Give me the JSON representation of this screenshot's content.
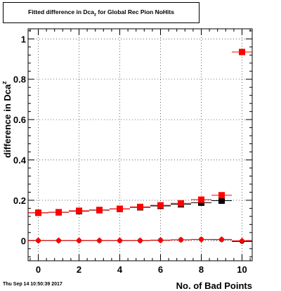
{
  "chart_data": {
    "type": "scatter",
    "title": {
      "main": "Fitted difference in Dca",
      "subscript": "z",
      "suffix": " for Global Rec Pion NoHits"
    },
    "xlabel": "No. of Bad Points",
    "ylabel": {
      "main": "difference in Dca",
      "subscript": "z"
    },
    "xlim": [
      -0.5,
      10.5
    ],
    "ylim": [
      -0.1,
      1.05
    ],
    "xticks": [
      0,
      2,
      4,
      6,
      8,
      10
    ],
    "yticks": [
      0,
      0.2,
      0.4,
      0.6,
      0.8,
      1
    ],
    "ytick_labels": [
      "0",
      "0.2",
      "0.4",
      "0.6",
      "0.8",
      "1"
    ],
    "xtick_labels": [
      "0",
      "2",
      "4",
      "6",
      "8",
      "10"
    ],
    "grid": "vertical and horizontal dotted",
    "series": [
      {
        "marker": "square",
        "color": "#000000",
        "x": [
          0,
          1,
          2,
          3,
          4,
          5,
          6,
          7,
          8,
          9,
          10
        ],
        "y": [
          0.138,
          0.14,
          0.146,
          0.151,
          0.157,
          0.165,
          0.172,
          0.18,
          0.188,
          0.198,
          0.935
        ],
        "xerr": 0.5
      },
      {
        "marker": "square",
        "color": "#ff0000",
        "x": [
          0,
          1,
          2,
          3,
          4,
          5,
          6,
          7,
          8,
          9,
          10
        ],
        "y": [
          0.138,
          0.141,
          0.148,
          0.152,
          0.158,
          0.167,
          0.175,
          0.185,
          0.203,
          0.225,
          0.935
        ],
        "xerr": 0.5
      },
      {
        "marker": "circle",
        "color": "#000000",
        "x": [
          0,
          1,
          2,
          3,
          4,
          5,
          6,
          7,
          8,
          9,
          10
        ],
        "y": [
          0.0,
          0.0,
          0.0,
          0.0,
          0.0,
          0.0,
          0.002,
          0.004,
          0.006,
          0.005,
          -0.004
        ],
        "xerr": 0.5
      },
      {
        "marker": "diamond",
        "color": "#ff0000",
        "x": [
          0,
          1,
          2,
          3,
          4,
          5,
          6,
          7,
          8,
          9,
          10
        ],
        "y": [
          0.0,
          0.0,
          0.0,
          0.0,
          0.0,
          0.0,
          0.002,
          0.004,
          0.006,
          0.006,
          -0.001
        ],
        "xerr": 0.5
      }
    ]
  },
  "footer": {
    "date": "Thu Sep 14 10:50:39 2017"
  }
}
